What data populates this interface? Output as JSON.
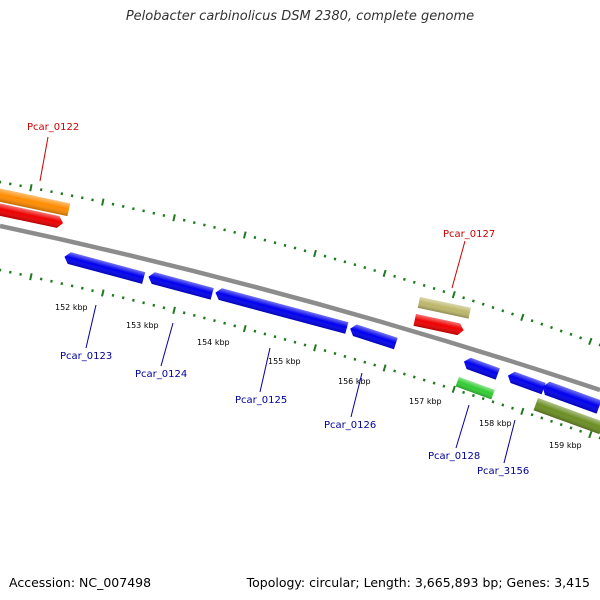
{
  "title": "Pelobacter carbinolicus DSM 2380, complete genome",
  "footer": {
    "accession": "Accession: NC_007498",
    "info": "Topology: circular; Length: 3,665,893 bp; Genes: 3,415"
  },
  "colors": {
    "backbone": "#8c8c8c",
    "tick": "#1e7a1e",
    "forward_label": "#cc0000",
    "reverse_label": "#00009c"
  },
  "scale_labels": [
    "152 kbp",
    "153 kbp",
    "154 kbp",
    "155 kbp",
    "156 kbp",
    "157 kbp",
    "158 kbp",
    "159 kbp"
  ],
  "gene_labels": {
    "forward": [
      "Pcar_0122",
      "Pcar_0127"
    ],
    "reverse": [
      "Pcar_0123",
      "Pcar_0124",
      "Pcar_0125",
      "Pcar_0126",
      "Pcar_0128",
      "Pcar_3156"
    ]
  },
  "genes": [
    {
      "strand": "forward",
      "color": "#ff8c00",
      "label": "Pcar_0122"
    },
    {
      "strand": "forward",
      "color": "#ee0000",
      "label": ""
    },
    {
      "strand": "forward",
      "color": "#bdb76b",
      "label": "Pcar_0127"
    },
    {
      "strand": "forward",
      "color": "#ee0000",
      "label": ""
    },
    {
      "strand": "reverse",
      "color": "#0000ee",
      "label": "Pcar_0123"
    },
    {
      "strand": "reverse",
      "color": "#0000ee",
      "label": "Pcar_0124"
    },
    {
      "strand": "reverse",
      "color": "#0000ee",
      "label": "Pcar_0125"
    },
    {
      "strand": "reverse",
      "color": "#0000ee",
      "label": "Pcar_0126"
    },
    {
      "strand": "reverse",
      "color": "#0000ee",
      "label": "Pcar_0128"
    },
    {
      "strand": "reverse",
      "color": "#0000ee",
      "label": ""
    },
    {
      "strand": "reverse",
      "color": "#0000ee",
      "label": ""
    },
    {
      "strand": "reverse",
      "color": "#32cd32",
      "label": ""
    },
    {
      "strand": "reverse",
      "color": "#6b8e23",
      "label": "Pcar_3156"
    }
  ]
}
